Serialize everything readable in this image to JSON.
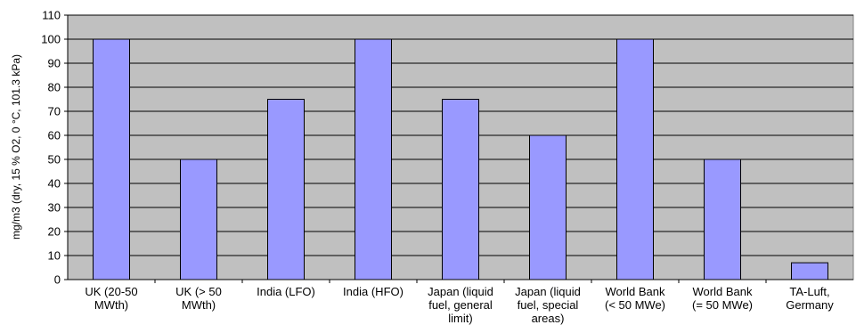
{
  "chart_data": {
    "type": "bar",
    "title": "",
    "ylabel": "mg/m3 (dry, 15 % O2, 0 °C, 101.3 kPa)",
    "xlabel": "",
    "ylim": [
      0,
      110
    ],
    "yticks": [
      0,
      10,
      20,
      30,
      40,
      50,
      60,
      70,
      80,
      90,
      100,
      110
    ],
    "grid": true,
    "legend": "none",
    "colors": {
      "bar": "#9999ff",
      "plot_bg": "#c0c0c0",
      "gridline": "#000000"
    },
    "categories": [
      [
        "UK (20-50",
        "MWth)"
      ],
      [
        "UK (> 50",
        "MWth)"
      ],
      [
        "India (LFO)"
      ],
      [
        "India (HFO)"
      ],
      [
        "Japan (liquid",
        "fuel, general",
        "limit)"
      ],
      [
        "Japan (liquid",
        "fuel, special",
        "areas)"
      ],
      [
        "World Bank",
        "(< 50 MWe)"
      ],
      [
        "World Bank",
        "(= 50 MWe)"
      ],
      [
        "TA-Luft,",
        "Germany"
      ]
    ],
    "values": [
      100,
      50,
      75,
      100,
      75,
      60,
      100,
      50,
      7
    ]
  }
}
